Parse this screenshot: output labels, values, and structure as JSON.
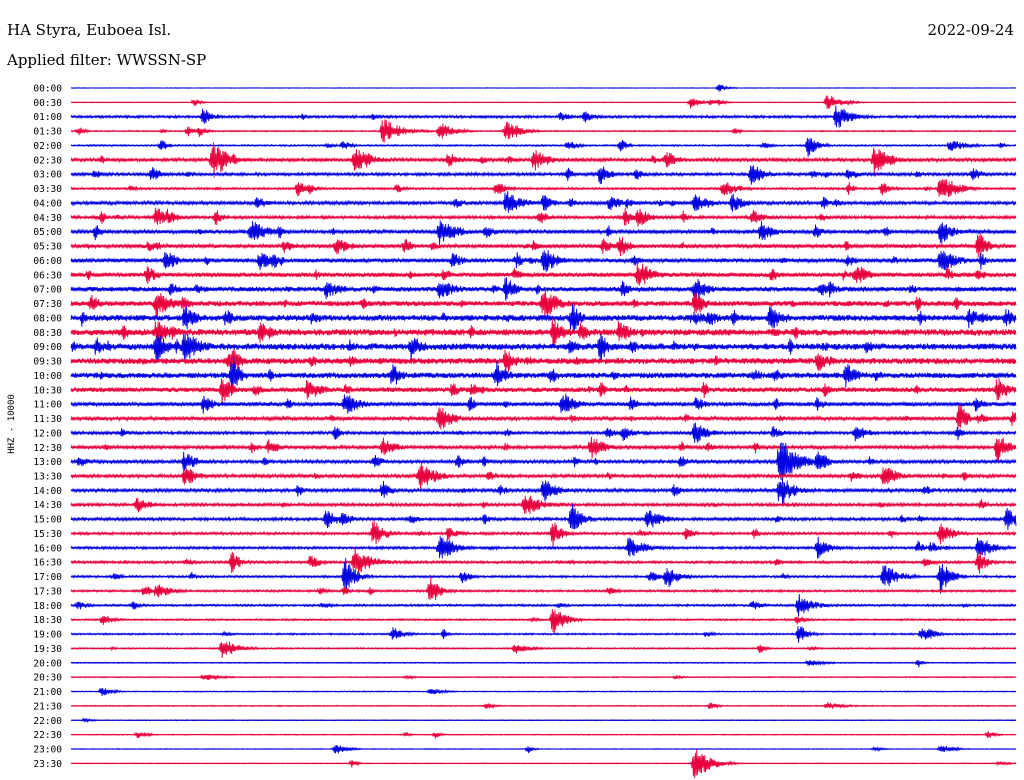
{
  "header": {
    "station": "HA Styra, Euboea Isl.",
    "date": "2022-09-24",
    "filter": "Applied filter: WWSSN-SP"
  },
  "chart_data": {
    "type": "helicorder",
    "channel_label": "HHZ - 10000",
    "row_labels": [
      "00:00",
      "00:30",
      "01:00",
      "01:30",
      "02:00",
      "02:30",
      "03:00",
      "03:30",
      "04:00",
      "04:30",
      "05:00",
      "05:30",
      "06:00",
      "06:30",
      "07:00",
      "07:30",
      "08:00",
      "08:30",
      "09:00",
      "09:30",
      "10:00",
      "10:30",
      "11:00",
      "11:30",
      "12:00",
      "12:30",
      "13:00",
      "13:30",
      "14:00",
      "14:30",
      "15:00",
      "15:30",
      "16:00",
      "16:30",
      "17:00",
      "17:30",
      "18:00",
      "18:30",
      "19:00",
      "19:30",
      "20:00",
      "20:30",
      "21:00",
      "21:30",
      "22:00",
      "22:30",
      "23:00",
      "23:30"
    ],
    "colors": [
      "#0000e0",
      "#e8003c"
    ],
    "noise_level": [
      0.3,
      0.3,
      1.2,
      0.6,
      0.8,
      1.6,
      1.4,
      1.0,
      1.6,
      1.4,
      1.8,
      1.8,
      2.0,
      2.2,
      2.4,
      2.6,
      3.0,
      3.2,
      3.2,
      3.0,
      2.8,
      2.4,
      2.0,
      1.8,
      1.4,
      1.6,
      1.6,
      1.6,
      1.6,
      1.4,
      1.4,
      1.2,
      1.2,
      1.2,
      1.0,
      1.0,
      1.0,
      0.8,
      0.8,
      0.7,
      0.5,
      0.5,
      0.5,
      0.5,
      0.4,
      0.4,
      0.4,
      0.4
    ],
    "activity": [
      0.1,
      0.3,
      0.3,
      0.4,
      0.5,
      0.7,
      0.7,
      0.6,
      0.8,
      0.8,
      0.9,
      0.9,
      1.0,
      1.0,
      1.0,
      1.0,
      1.0,
      1.0,
      1.0,
      1.0,
      1.0,
      0.9,
      0.8,
      0.8,
      0.7,
      0.7,
      0.7,
      0.7,
      0.6,
      0.6,
      0.5,
      0.5,
      0.5,
      0.5,
      0.4,
      0.4,
      0.4,
      0.3,
      0.3,
      0.25,
      0.15,
      0.15,
      0.15,
      0.15,
      0.1,
      0.15,
      0.15,
      0.15
    ],
    "events": [
      {
        "row": 1,
        "t": 0.8,
        "amp": 9
      },
      {
        "row": 2,
        "t": 0.14,
        "amp": 10
      },
      {
        "row": 2,
        "t": 0.81,
        "amp": 14
      },
      {
        "row": 3,
        "t": 0.33,
        "amp": 14
      },
      {
        "row": 3,
        "t": 0.39,
        "amp": 10
      },
      {
        "row": 3,
        "t": 0.46,
        "amp": 11
      },
      {
        "row": 4,
        "t": 0.78,
        "amp": 12
      },
      {
        "row": 4,
        "t": 0.93,
        "amp": 7
      },
      {
        "row": 5,
        "t": 0.15,
        "amp": 22
      },
      {
        "row": 5,
        "t": 0.3,
        "amp": 14
      },
      {
        "row": 5,
        "t": 0.49,
        "amp": 12
      },
      {
        "row": 5,
        "t": 0.63,
        "amp": 11
      },
      {
        "row": 5,
        "t": 0.85,
        "amp": 16
      },
      {
        "row": 6,
        "t": 0.56,
        "amp": 12
      },
      {
        "row": 6,
        "t": 0.72,
        "amp": 12
      },
      {
        "row": 7,
        "t": 0.24,
        "amp": 9
      },
      {
        "row": 7,
        "t": 0.45,
        "amp": 9
      },
      {
        "row": 7,
        "t": 0.69,
        "amp": 9
      },
      {
        "row": 7,
        "t": 0.92,
        "amp": 16
      },
      {
        "row": 8,
        "t": 0.46,
        "amp": 14
      },
      {
        "row": 8,
        "t": 0.5,
        "amp": 11
      },
      {
        "row": 8,
        "t": 0.57,
        "amp": 9
      },
      {
        "row": 8,
        "t": 0.66,
        "amp": 10
      },
      {
        "row": 8,
        "t": 0.7,
        "amp": 11
      },
      {
        "row": 9,
        "t": 0.09,
        "amp": 12
      },
      {
        "row": 9,
        "t": 0.6,
        "amp": 12
      },
      {
        "row": 10,
        "t": 0.19,
        "amp": 13
      },
      {
        "row": 10,
        "t": 0.39,
        "amp": 16
      },
      {
        "row": 10,
        "t": 0.73,
        "amp": 13
      },
      {
        "row": 10,
        "t": 0.92,
        "amp": 14
      },
      {
        "row": 11,
        "t": 0.28,
        "amp": 10
      },
      {
        "row": 11,
        "t": 0.58,
        "amp": 13
      },
      {
        "row": 11,
        "t": 0.96,
        "amp": 16
      },
      {
        "row": 12,
        "t": 0.1,
        "amp": 13
      },
      {
        "row": 12,
        "t": 0.2,
        "amp": 12
      },
      {
        "row": 12,
        "t": 0.5,
        "amp": 16
      },
      {
        "row": 12,
        "t": 0.92,
        "amp": 14
      },
      {
        "row": 13,
        "t": 0.08,
        "amp": 10
      },
      {
        "row": 13,
        "t": 0.6,
        "amp": 16
      },
      {
        "row": 13,
        "t": 0.6,
        "amp": 12
      },
      {
        "row": 13,
        "t": 0.83,
        "amp": 14
      },
      {
        "row": 14,
        "t": 0.27,
        "amp": 10
      },
      {
        "row": 14,
        "t": 0.39,
        "amp": 12
      },
      {
        "row": 14,
        "t": 0.46,
        "amp": 14
      },
      {
        "row": 14,
        "t": 0.66,
        "amp": 14
      },
      {
        "row": 15,
        "t": 0.09,
        "amp": 15
      },
      {
        "row": 15,
        "t": 0.5,
        "amp": 18
      },
      {
        "row": 15,
        "t": 0.66,
        "amp": 14
      },
      {
        "row": 16,
        "t": 0.12,
        "amp": 14
      },
      {
        "row": 16,
        "t": 0.53,
        "amp": 18
      },
      {
        "row": 16,
        "t": 0.74,
        "amp": 14
      },
      {
        "row": 16,
        "t": 0.95,
        "amp": 12
      },
      {
        "row": 17,
        "t": 0.09,
        "amp": 14
      },
      {
        "row": 17,
        "t": 0.2,
        "amp": 13
      },
      {
        "row": 17,
        "t": 0.51,
        "amp": 18
      },
      {
        "row": 17,
        "t": 0.58,
        "amp": 14
      },
      {
        "row": 18,
        "t": 0.09,
        "amp": 18
      },
      {
        "row": 18,
        "t": 0.12,
        "amp": 18
      },
      {
        "row": 18,
        "t": 0.36,
        "amp": 14
      },
      {
        "row": 18,
        "t": 0.56,
        "amp": 18
      },
      {
        "row": 19,
        "t": 0.17,
        "amp": 16
      },
      {
        "row": 19,
        "t": 0.46,
        "amp": 16
      },
      {
        "row": 19,
        "t": 0.79,
        "amp": 12
      },
      {
        "row": 20,
        "t": 0.17,
        "amp": 24
      },
      {
        "row": 20,
        "t": 0.34,
        "amp": 14
      },
      {
        "row": 20,
        "t": 0.45,
        "amp": 16
      },
      {
        "row": 20,
        "t": 0.82,
        "amp": 14
      },
      {
        "row": 21,
        "t": 0.16,
        "amp": 18
      },
      {
        "row": 21,
        "t": 0.25,
        "amp": 12
      },
      {
        "row": 21,
        "t": 0.98,
        "amp": 14
      },
      {
        "row": 22,
        "t": 0.14,
        "amp": 10
      },
      {
        "row": 22,
        "t": 0.29,
        "amp": 12
      },
      {
        "row": 22,
        "t": 0.52,
        "amp": 14
      },
      {
        "row": 23,
        "t": 0.39,
        "amp": 14
      },
      {
        "row": 23,
        "t": 0.94,
        "amp": 18
      },
      {
        "row": 24,
        "t": 0.66,
        "amp": 13
      },
      {
        "row": 24,
        "t": 0.83,
        "amp": 10
      },
      {
        "row": 25,
        "t": 0.33,
        "amp": 12
      },
      {
        "row": 25,
        "t": 0.55,
        "amp": 13
      },
      {
        "row": 25,
        "t": 0.98,
        "amp": 18
      },
      {
        "row": 26,
        "t": 0.12,
        "amp": 12
      },
      {
        "row": 26,
        "t": 0.75,
        "amp": 28
      },
      {
        "row": 26,
        "t": 0.79,
        "amp": 14
      },
      {
        "row": 27,
        "t": 0.12,
        "amp": 12
      },
      {
        "row": 27,
        "t": 0.37,
        "amp": 14
      },
      {
        "row": 27,
        "t": 0.86,
        "amp": 13
      },
      {
        "row": 28,
        "t": 0.33,
        "amp": 12
      },
      {
        "row": 28,
        "t": 0.5,
        "amp": 13
      },
      {
        "row": 28,
        "t": 0.75,
        "amp": 18
      },
      {
        "row": 29,
        "t": 0.07,
        "amp": 10
      },
      {
        "row": 29,
        "t": 0.48,
        "amp": 14
      },
      {
        "row": 30,
        "t": 0.27,
        "amp": 10
      },
      {
        "row": 30,
        "t": 0.53,
        "amp": 18
      },
      {
        "row": 30,
        "t": 0.61,
        "amp": 12
      },
      {
        "row": 30,
        "t": 0.99,
        "amp": 12
      },
      {
        "row": 31,
        "t": 0.32,
        "amp": 14
      },
      {
        "row": 31,
        "t": 0.51,
        "amp": 14
      },
      {
        "row": 31,
        "t": 0.92,
        "amp": 12
      },
      {
        "row": 32,
        "t": 0.39,
        "amp": 16
      },
      {
        "row": 32,
        "t": 0.59,
        "amp": 12
      },
      {
        "row": 32,
        "t": 0.79,
        "amp": 12
      },
      {
        "row": 32,
        "t": 0.96,
        "amp": 14
      },
      {
        "row": 33,
        "t": 0.17,
        "amp": 13
      },
      {
        "row": 33,
        "t": 0.3,
        "amp": 16
      },
      {
        "row": 33,
        "t": 0.96,
        "amp": 14
      },
      {
        "row": 34,
        "t": 0.29,
        "amp": 20
      },
      {
        "row": 34,
        "t": 0.63,
        "amp": 13
      },
      {
        "row": 34,
        "t": 0.86,
        "amp": 14
      },
      {
        "row": 34,
        "t": 0.92,
        "amp": 18
      },
      {
        "row": 35,
        "t": 0.09,
        "amp": 8
      },
      {
        "row": 35,
        "t": 0.38,
        "amp": 16
      },
      {
        "row": 36,
        "t": 0.77,
        "amp": 12
      },
      {
        "row": 37,
        "t": 0.51,
        "amp": 16
      },
      {
        "row": 38,
        "t": 0.34,
        "amp": 8
      },
      {
        "row": 38,
        "t": 0.77,
        "amp": 13
      },
      {
        "row": 38,
        "t": 0.9,
        "amp": 8
      },
      {
        "row": 39,
        "t": 0.16,
        "amp": 12
      },
      {
        "row": 39,
        "t": 0.47,
        "amp": 6
      },
      {
        "row": 40,
        "t": 0.78,
        "amp": 4
      },
      {
        "row": 41,
        "t": 0.14,
        "amp": 4
      },
      {
        "row": 42,
        "t": 0.38,
        "amp": 4
      },
      {
        "row": 43,
        "t": 0.8,
        "amp": 4
      },
      {
        "row": 45,
        "t": 0.07,
        "amp": 4
      },
      {
        "row": 45,
        "t": 0.97,
        "amp": 4
      },
      {
        "row": 46,
        "t": 0.28,
        "amp": 7
      },
      {
        "row": 46,
        "t": 0.92,
        "amp": 5
      },
      {
        "row": 47,
        "t": 0.66,
        "amp": 20
      }
    ]
  }
}
